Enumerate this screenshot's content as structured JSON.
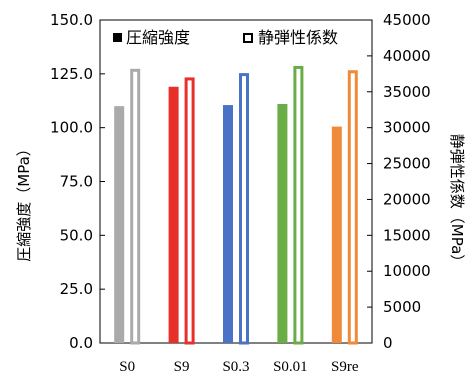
{
  "chart_data": {
    "type": "bar",
    "categories": [
      "S0",
      "S9",
      "S0.3",
      "S0.01",
      "S9re"
    ],
    "category_colors": [
      "#aaaaaa",
      "#e8302a",
      "#4a72c6",
      "#6aac46",
      "#ee8a3a"
    ],
    "series": [
      {
        "name": "圧縮強度",
        "axis": "left",
        "style": "filled",
        "values": [
          110.0,
          119.0,
          110.5,
          111.0,
          100.5
        ]
      },
      {
        "name": "静弾性係数",
        "axis": "right",
        "style": "outline",
        "values": [
          38200,
          37000,
          37600,
          38600,
          38000
        ]
      }
    ],
    "left_axis": {
      "label": "圧縮強度（MPa）",
      "range": [
        0,
        150
      ],
      "ticks": [
        "0.0",
        "25.0",
        "50.0",
        "75.0",
        "100.0",
        "125.0",
        "150.0"
      ]
    },
    "right_axis": {
      "label": "静弾性係数（MPa）",
      "range": [
        0,
        45000
      ],
      "ticks": [
        "0",
        "5000",
        "10000",
        "15000",
        "20000",
        "25000",
        "30000",
        "35000",
        "40000",
        "45000"
      ]
    },
    "legend": {
      "placement": "top",
      "items": [
        {
          "label": "圧縮強度",
          "marker": "filled-square"
        },
        {
          "label": "静弾性係数",
          "marker": "outline-square"
        }
      ]
    },
    "grid": false
  }
}
